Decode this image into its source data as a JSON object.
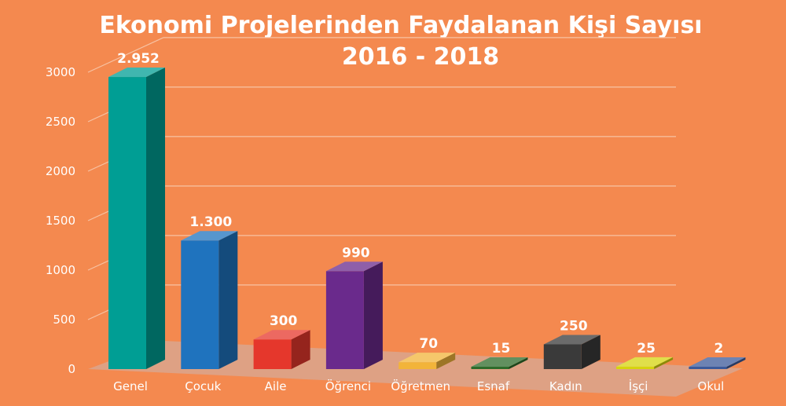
{
  "chart_data": {
    "type": "bar",
    "title_line1": "Ekonomi Projelerinden Faydalanan Kişi Sayısı",
    "title_line2": "2016 - 2018",
    "xlabel": "",
    "ylabel": "",
    "ylim": [
      0,
      3000
    ],
    "yticks": [
      "0",
      "500",
      "1000",
      "1500",
      "2000",
      "2500",
      "3000"
    ],
    "grid": true,
    "legend": "none",
    "categories": [
      "Genel",
      "Çocuk",
      "Aile",
      "Öğrenci",
      "Öğretmen",
      "Esnaf",
      "Kadın",
      "İşçi",
      "Okul"
    ],
    "values": [
      2952,
      1300,
      300,
      990,
      70,
      15,
      250,
      25,
      2
    ],
    "value_labels": [
      "2.952",
      "1.300",
      "300",
      "990",
      "70",
      "15",
      "250",
      "25",
      "2"
    ],
    "colors": [
      "#009E94",
      "#1F73BE",
      "#E5372C",
      "#6A2A8C",
      "#F2B43A",
      "#2E6B2A",
      "#3A3A3A",
      "#D6D40E",
      "#3C5A9A"
    ]
  }
}
